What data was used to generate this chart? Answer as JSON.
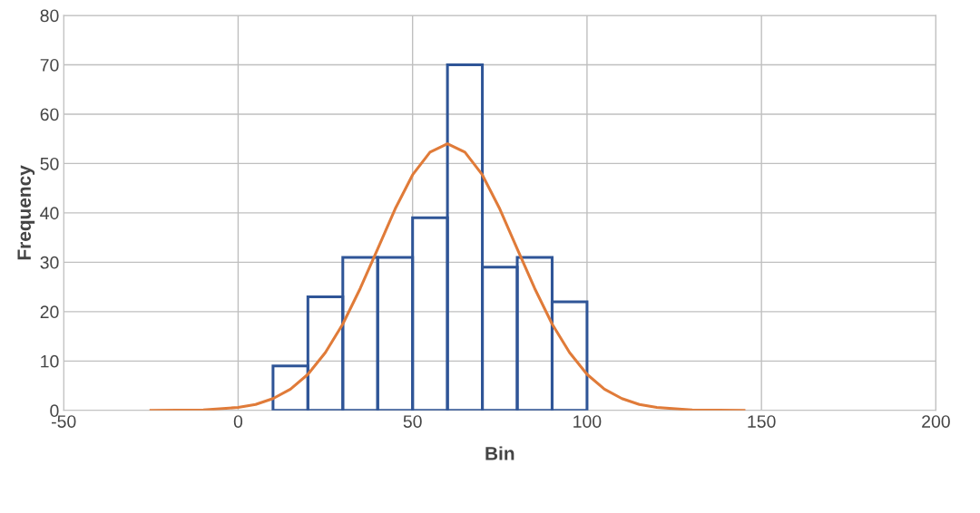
{
  "chart_data": {
    "type": "histogram",
    "xlabel": "Bin",
    "ylabel": "Frequency",
    "bins": [
      10,
      20,
      30,
      40,
      50,
      60,
      70,
      80,
      90,
      100
    ],
    "values": [
      9,
      23,
      31,
      31,
      39,
      70,
      29,
      31,
      22
    ],
    "color": "#2f5597",
    "series": [
      {
        "type": "line",
        "color": "#e07b39",
        "x": [
          -25,
          -10,
          0,
          5,
          10,
          15,
          20,
          25,
          30,
          35,
          40,
          45,
          50,
          55,
          60,
          65,
          70,
          75,
          80,
          85,
          90,
          95,
          100,
          105,
          110,
          115,
          120,
          130,
          145
        ],
        "values": [
          0,
          0.1,
          0.6,
          1.2,
          2.4,
          4.3,
          7.3,
          11.7,
          17.5,
          24.7,
          32.7,
          40.8,
          47.7,
          52.3,
          54,
          52.3,
          47.7,
          40.8,
          32.7,
          24.7,
          17.5,
          11.7,
          7.3,
          4.3,
          2.4,
          1.2,
          0.6,
          0.1,
          0
        ]
      }
    ],
    "xlim": [
      -50,
      200
    ],
    "xticks": [
      -50,
      0,
      50,
      100,
      150,
      200
    ],
    "ylim": [
      0,
      80
    ],
    "yticks": [
      0,
      10,
      20,
      30,
      40,
      50,
      60,
      70,
      80
    ],
    "grid": true,
    "legend": false
  }
}
